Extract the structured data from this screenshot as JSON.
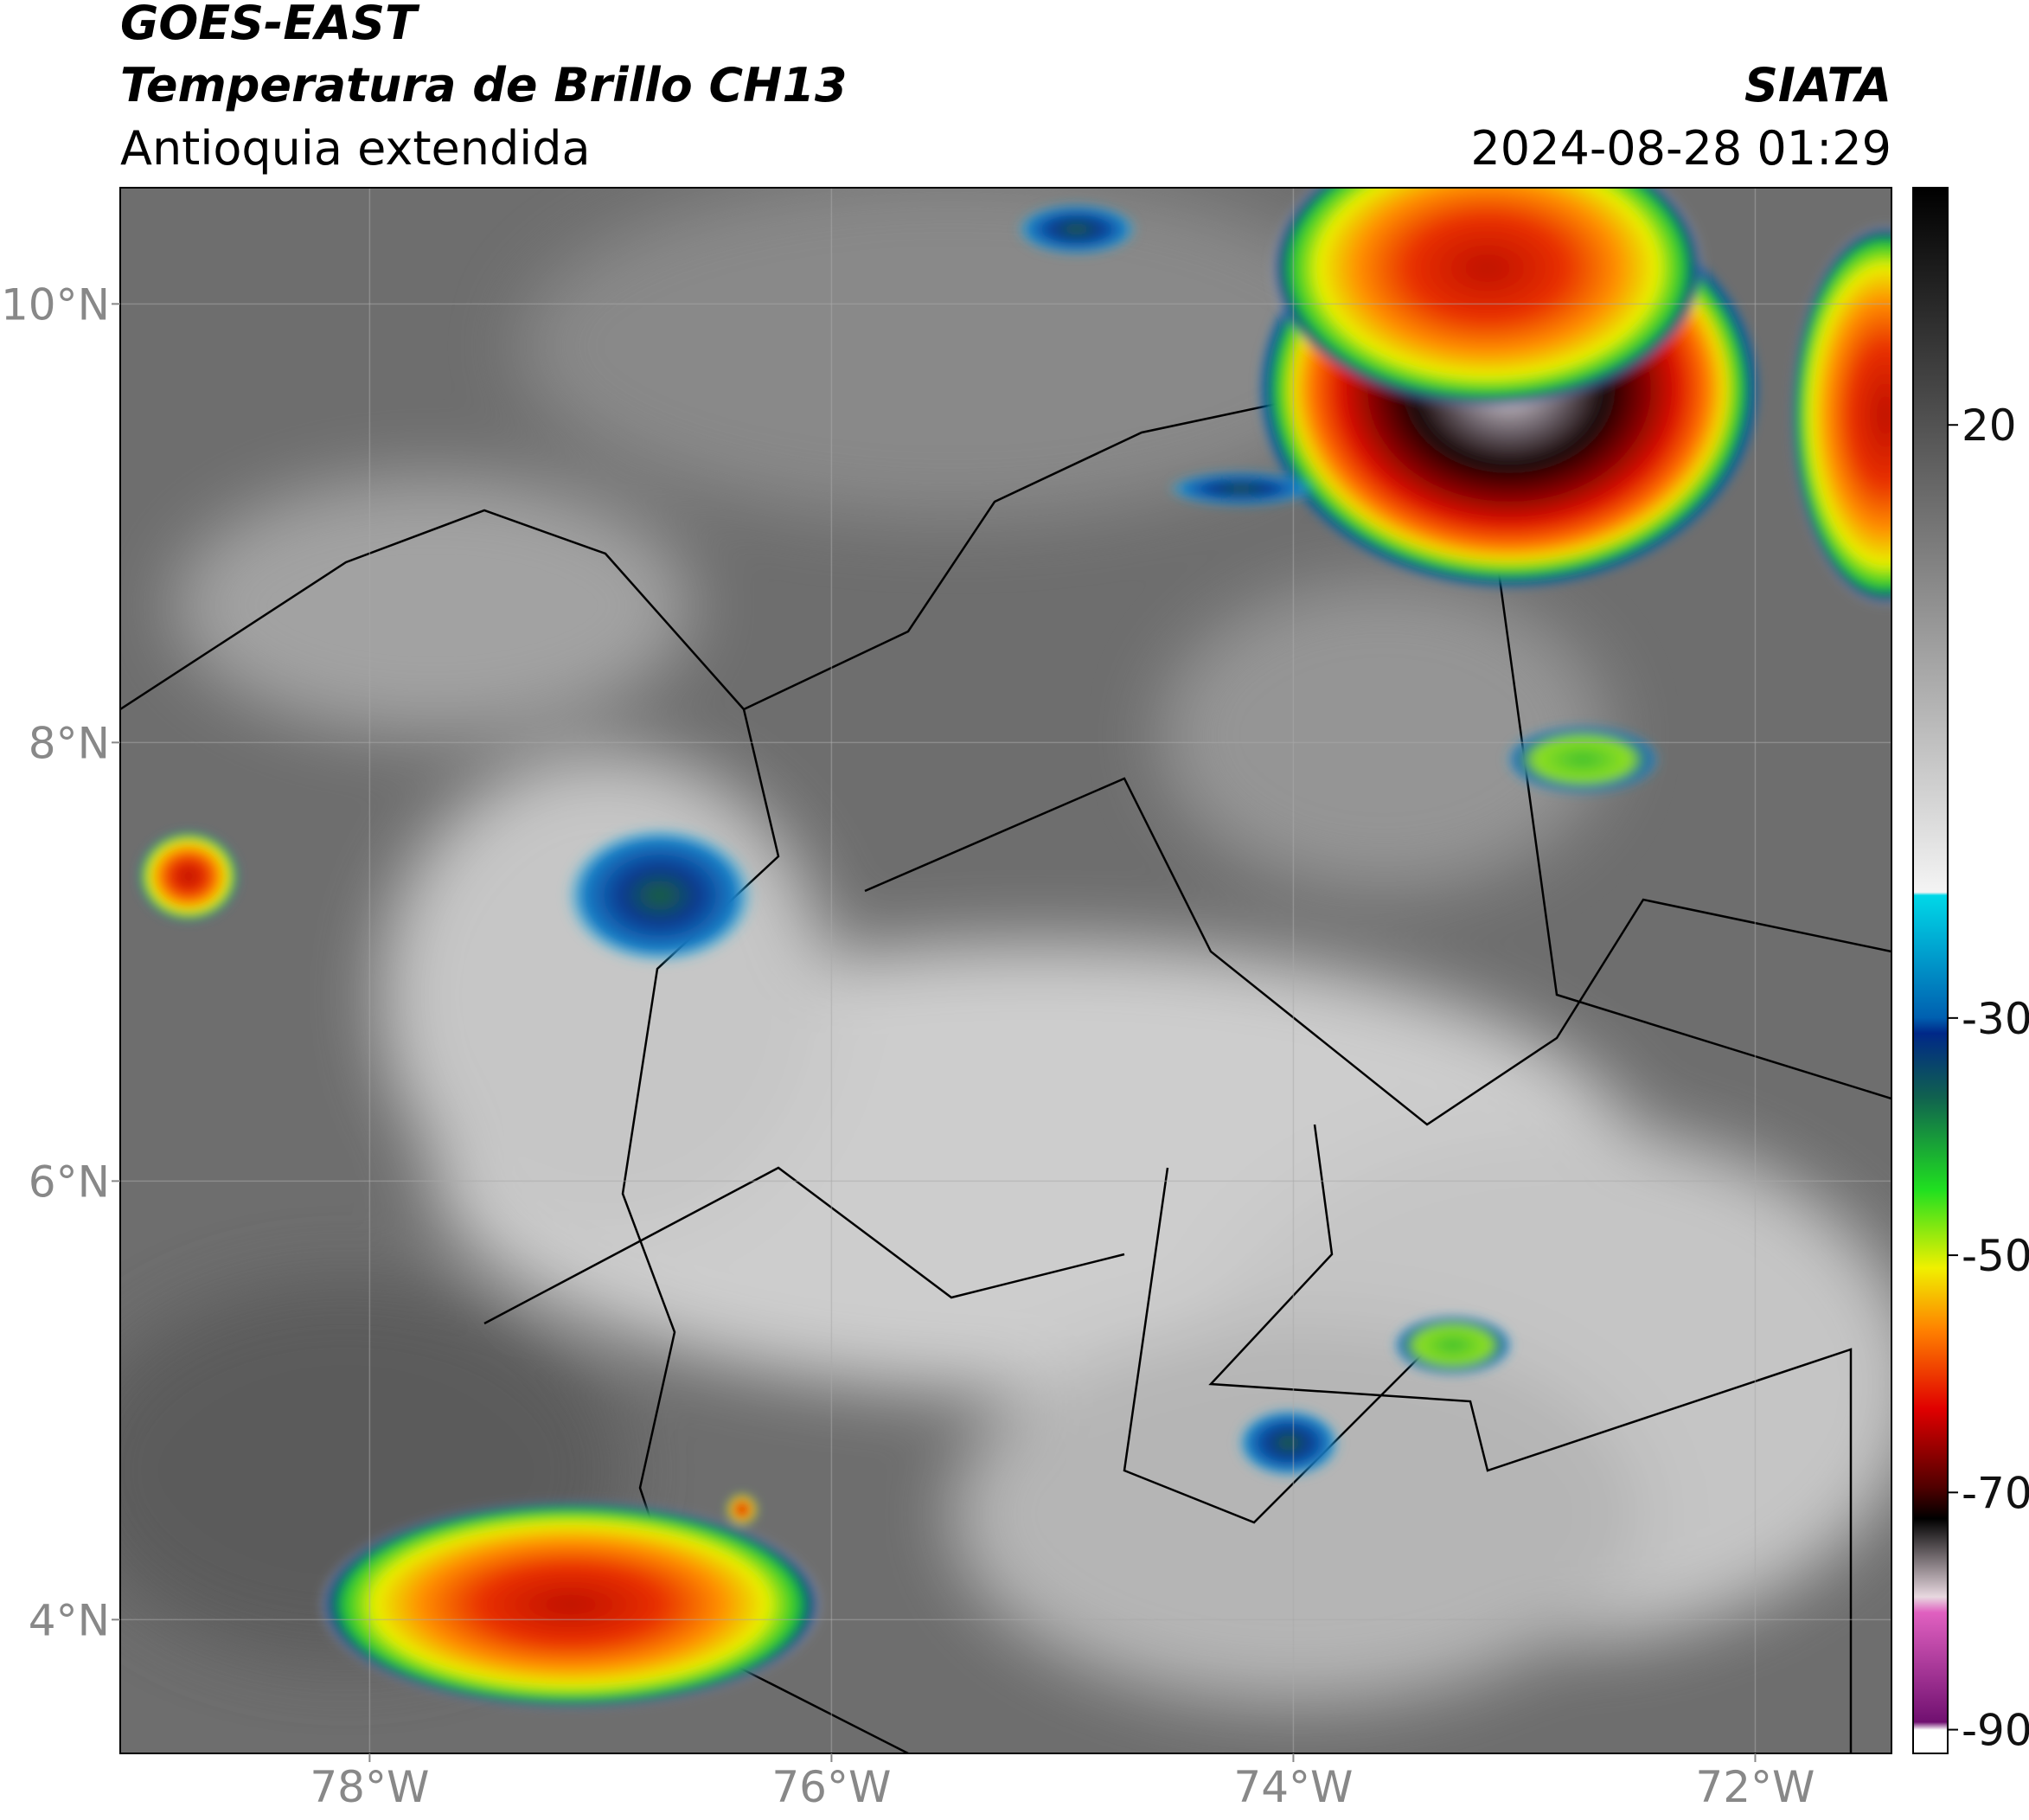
{
  "header": {
    "title": "GOES-EAST",
    "subtitle": "Temperatura de Brillo CH13",
    "region": "Antioquia extendida",
    "source": "SIATA",
    "datetime": "2024-08-28 01:29"
  },
  "map": {
    "lonlim": [
      -79.08,
      -71.41
    ],
    "latlim": [
      3.39,
      10.53
    ],
    "lon_ticks": [
      {
        "value": -78,
        "label": "78°W"
      },
      {
        "value": -76,
        "label": "76°W"
      },
      {
        "value": -74,
        "label": "74°W"
      },
      {
        "value": -72,
        "label": "72°W"
      }
    ],
    "lat_ticks": [
      {
        "value": 4,
        "label": "4°N"
      },
      {
        "value": 6,
        "label": "6°N"
      },
      {
        "value": 8,
        "label": "8°N"
      },
      {
        "value": 10,
        "label": "10°N"
      }
    ]
  },
  "colorbar": {
    "lim": [
      -92,
      40
    ],
    "ticks": [
      20,
      -30,
      -50,
      -70,
      -90
    ]
  }
}
